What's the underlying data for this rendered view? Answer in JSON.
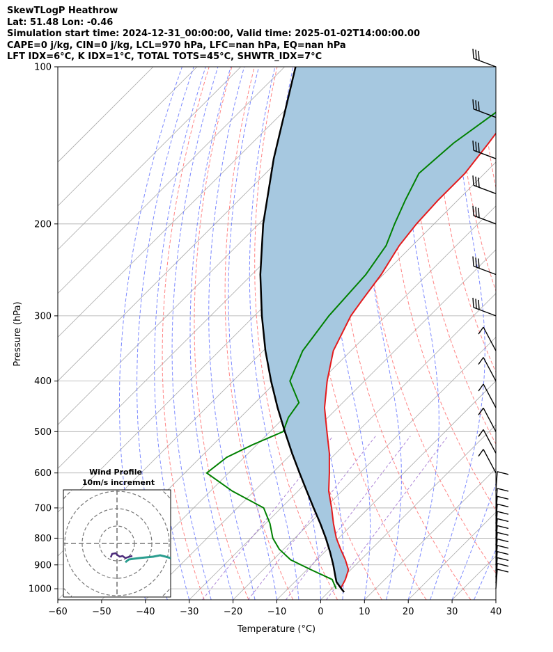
{
  "header": {
    "line1": "SkewTLogP Heathrow",
    "line2": "Lat: 51.48   Lon: -0.46",
    "line3": "Simulation start time: 2024-12-31_00:00:00, Valid time: 2025-01-02T14:00:00.00",
    "line4": "CAPE=0 j/kg, CIN=0 j/kg, LCL=970 hPa, LFC=nan hPa, EQ=nan hPa",
    "line5": "LFT IDX=6°C, K IDX=1°C, TOTAL TOTS=45°C, SHWTR_IDX=7°C"
  },
  "colors": {
    "temperature": "#e41a1c",
    "dewpoint": "#008000",
    "parcel": "#000000",
    "cape_fill": "#a6c8e0",
    "dry_adiabat": "#ff6f6f",
    "moist_adiabat": "#5b6cff",
    "mixing_ratio": "#9966cc",
    "isotherm": "#aaaaaa"
  },
  "chart_data": {
    "type": "skew-t log-p",
    "xlabel": "Temperature (°C)",
    "ylabel": "Pressure (hPa)",
    "xlim": [
      -60,
      40
    ],
    "ylim": [
      1050,
      100
    ],
    "x_ticks": [
      -60,
      -50,
      -40,
      -30,
      -20,
      -10,
      0,
      10,
      20,
      30,
      40
    ],
    "y_ticks": [
      1000,
      900,
      800,
      700,
      600,
      500,
      400,
      300,
      200,
      100
    ],
    "y_scale": "log",
    "grid": true,
    "series": [
      {
        "key": "temperature",
        "pressure": [
          1000,
          960,
          920,
          880,
          840,
          800,
          750,
          700,
          650,
          600,
          550,
          500,
          450,
          400,
          350,
          300,
          280,
          250,
          220,
          200,
          180,
          160,
          140,
          120,
          100
        ],
        "values": [
          2,
          1,
          -0.5,
          -3.5,
          -7,
          -10.5,
          -14.5,
          -18.5,
          -23,
          -27,
          -31.5,
          -37,
          -43,
          -48.5,
          -54,
          -58,
          -59,
          -60.5,
          -63,
          -64,
          -64.5,
          -64.5,
          -66,
          -68,
          -71
        ]
      },
      {
        "key": "dewpoint",
        "pressure": [
          1000,
          960,
          920,
          880,
          840,
          800,
          750,
          700,
          650,
          600,
          560,
          530,
          500,
          470,
          440,
          400,
          350,
          300,
          250,
          220,
          200,
          180,
          160,
          140,
          120,
          100
        ],
        "values": [
          1,
          -2,
          -9,
          -16,
          -21,
          -25,
          -29,
          -34,
          -45,
          -55,
          -54,
          -51,
          -47,
          -49,
          -50,
          -57,
          -61,
          -63,
          -64,
          -66,
          -69,
          -72,
          -75,
          -74,
          -71,
          -68
        ]
      },
      {
        "key": "parcel",
        "pressure": [
          1015,
          1000,
          970,
          950,
          900,
          850,
          800,
          750,
          700,
          650,
          600,
          550,
          500,
          450,
          400,
          350,
          300,
          250,
          200,
          150,
          100
        ],
        "values": [
          3.6,
          2.2,
          -0.5,
          -1.8,
          -5.1,
          -8.8,
          -12.9,
          -17.5,
          -22.6,
          -28,
          -33.8,
          -40,
          -46.6,
          -53.7,
          -61.3,
          -69.5,
          -78.3,
          -88.1,
          -99,
          -111.5,
          -127.5
        ]
      }
    ],
    "wind_barbs_pressure": [
      1000,
      975,
      950,
      925,
      900,
      875,
      850,
      825,
      800,
      775,
      750,
      725,
      700,
      650,
      600,
      550,
      500,
      450,
      400,
      350,
      300,
      250,
      200,
      175,
      150,
      125,
      100
    ]
  },
  "inset": {
    "title": "Wind Profile",
    "subtitle": "10m/s increment"
  }
}
